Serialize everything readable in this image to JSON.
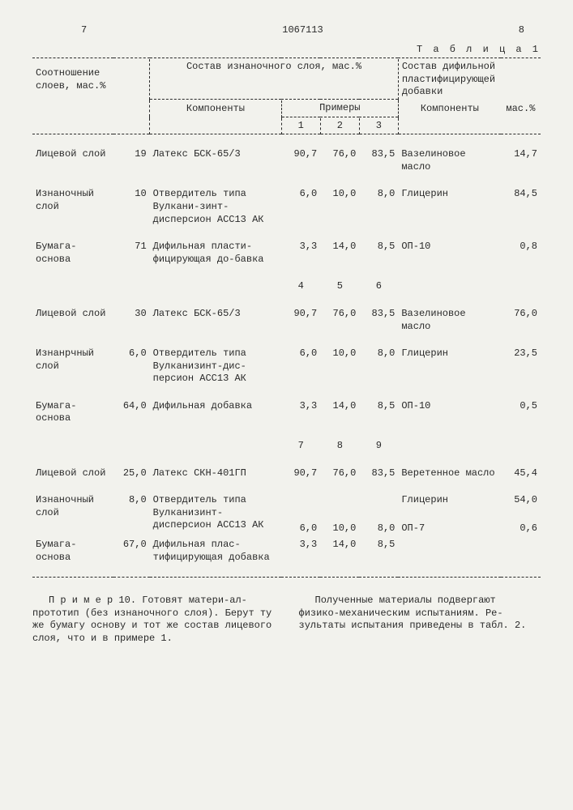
{
  "header": {
    "leftPage": "7",
    "docNumber": "1067113",
    "rightPage": "8"
  },
  "tableTitle": "Т а б л и ц а  1",
  "tableHeaders": {
    "ratioLabel1": "Соотношение",
    "ratioLabel2": "слоев, мас.%",
    "izHeader": "Состав изнаночного слоя, мас.%",
    "compLabel": "Компоненты",
    "examplesLabel": "Примеры",
    "difHeader1": "Состав дифильной",
    "difHeader2": "пластифицирующей",
    "difHeader3": "добавки",
    "difComp": "Компоненты",
    "difPct": "мас.%",
    "ex1": "1",
    "ex2": "2",
    "ex3": "3",
    "ex4": "4",
    "ex5": "5",
    "ex6": "6",
    "ex7": "7",
    "ex8": "8",
    "ex9": "9"
  },
  "rows": {
    "g1r1": {
      "layer": "Лицевой слой",
      "pct": "19",
      "comp": "Латекс БСК-65/3",
      "v1": "90,7",
      "v2": "76,0",
      "v3": "83,5",
      "add": "Вазелиновое масло",
      "addpct": "14,7"
    },
    "g1r2": {
      "layer": "Изнаночный слой",
      "pct": "10",
      "comp": "Отвердитель типа Вулкани-зинт-дисперсион АСС13 АК",
      "v1": "6,0",
      "v2": "10,0",
      "v3": "8,0",
      "add": "Глицерин",
      "addpct": "84,5"
    },
    "g1r3": {
      "layer": "Бумага-основа",
      "pct": "71",
      "comp": "Дифильная пласти-фицирующая до-бавка",
      "v1": "3,3",
      "v2": "14,0",
      "v3": "8,5",
      "add": "ОП-10",
      "addpct": "0,8"
    },
    "g2r1": {
      "layer": "Лицевой слой",
      "pct": "30",
      "comp": "Латекс БСК-65/3",
      "v1": "90,7",
      "v2": "76,0",
      "v3": "83,5",
      "add": "Вазелиновое масло",
      "addpct": "76,0"
    },
    "g2r2": {
      "layer": "Изнанрчный слой",
      "pct": "6,0",
      "comp": "Отвердитель типа Вулканизинт-дис-персион АСС13 АК",
      "v1": "6,0",
      "v2": "10,0",
      "v3": "8,0",
      "add": "Глицерин",
      "addpct": "23,5"
    },
    "g2r3": {
      "layer": "Бумага-основа",
      "pct": "64,0",
      "comp": "Дифильная добавка",
      "v1": "3,3",
      "v2": "14,0",
      "v3": "8,5",
      "add": "ОП-10",
      "addpct": "0,5"
    },
    "g3r1": {
      "layer": "Лицевой слой",
      "pct": "25,0",
      "comp": "Латекс СКН-401ГП",
      "v1": "90,7",
      "v2": "76,0",
      "v3": "83,5",
      "add": "Веретенное масло",
      "addpct": "45,4"
    },
    "g3r2": {
      "layer": "Изнаночный слой",
      "pct": "8,0",
      "comp": "Отвердитель типа Вулканизинт-дисперсион АСС13 АК",
      "v1": "6,0",
      "v2": "10,0",
      "v3": "8,0",
      "add": "Глицерин",
      "addpct": "54,0"
    },
    "g3r2b": {
      "add": "ОП-7",
      "addpct": "0,6"
    },
    "g3r3": {
      "layer": "Бумага-основа",
      "pct": "67,0",
      "comp": "Дифильная плас-тифицирующая добавка",
      "v1": "3,3",
      "v2": "14,0",
      "v3": "8,5"
    }
  },
  "footer": {
    "left": "П р и м е р  10. Готовят матери-ал-прототип (без изнаночного слоя). Берут ту же бумагу основу и тот же состав лицевого слоя, что и в примере 1.",
    "right": "Полученные материалы подвергают физико-механическим испытаниям. Ре-зультаты испытания приведены в табл. 2."
  }
}
